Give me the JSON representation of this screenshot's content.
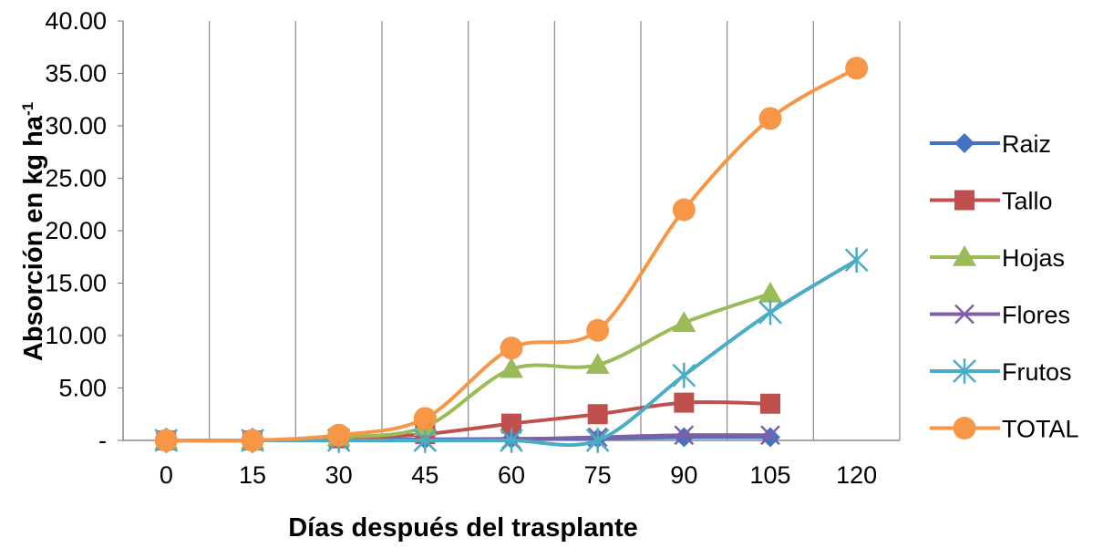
{
  "chart_data": {
    "type": "line",
    "title": "",
    "xlabel": "Días después del trasplante",
    "ylabel": {
      "main": "Absorción en kg ha",
      "superscript": "-1"
    },
    "x": [
      0,
      15,
      30,
      45,
      60,
      75,
      90,
      105,
      120
    ],
    "x_tick_labels": [
      "0",
      "15",
      "30",
      "45",
      "60",
      "75",
      "90",
      "105",
      "120"
    ],
    "y_tick_labels": [
      "-",
      "5.00",
      "10.00",
      "15.00",
      "20.00",
      "25.00",
      "30.00",
      "35.00",
      "40.00"
    ],
    "ylim": [
      0,
      40
    ],
    "y_ticks": [
      0,
      5,
      10,
      15,
      20,
      25,
      30,
      35,
      40
    ],
    "grid": "vertical gridlines",
    "legend": "right",
    "series": [
      {
        "name": "Raiz",
        "color": "#4472C4",
        "marker": "diamond",
        "values": [
          0,
          0,
          0.1,
          0.1,
          0.15,
          0.2,
          0.3,
          0.3,
          null
        ]
      },
      {
        "name": "Tallo",
        "color": "#C0504D",
        "marker": "square",
        "values": [
          0,
          0,
          0.2,
          0.6,
          1.6,
          2.5,
          3.6,
          3.5,
          null
        ]
      },
      {
        "name": "Hojas",
        "color": "#9BBB59",
        "marker": "triangle",
        "values": [
          0,
          0,
          0.3,
          1.3,
          6.8,
          7.2,
          11.2,
          14.0,
          null
        ]
      },
      {
        "name": "Flores",
        "color": "#7F5FA8",
        "marker": "x",
        "values": [
          0,
          0,
          0,
          0,
          0.1,
          0.3,
          0.5,
          0.5,
          null
        ]
      },
      {
        "name": "Frutos",
        "color": "#4BACC6",
        "marker": "star",
        "values": [
          0,
          0,
          0,
          0,
          0,
          0,
          6.2,
          12.2,
          17.2
        ]
      },
      {
        "name": "TOTAL",
        "color": "#F79646",
        "marker": "circle",
        "values": [
          0,
          0,
          0.5,
          2.1,
          8.8,
          10.5,
          22.0,
          30.7,
          35.5
        ]
      }
    ]
  }
}
